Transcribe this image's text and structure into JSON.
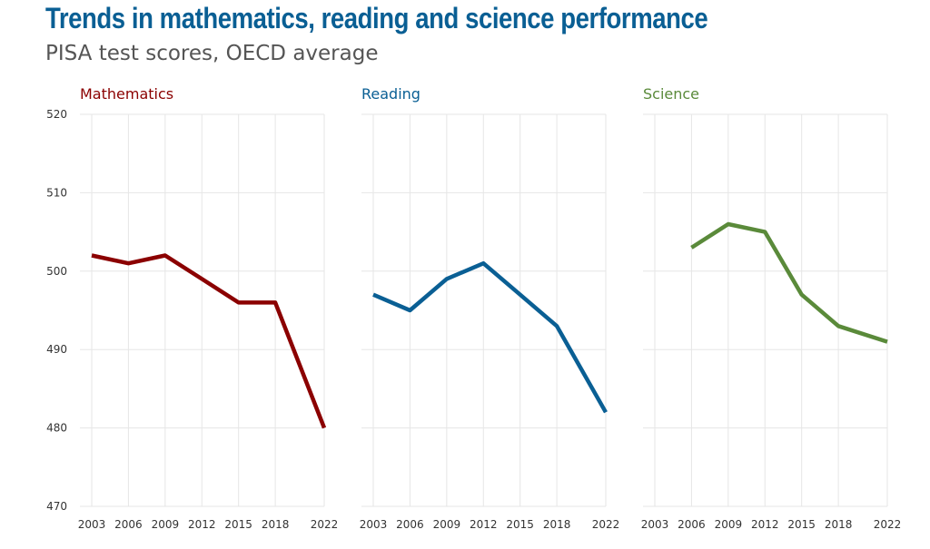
{
  "header": {
    "title": "Trends in mathematics, reading and science performance",
    "subtitle": "PISA test scores, OECD average"
  },
  "chart_data": {
    "type": "line",
    "x": [
      "2003",
      "2006",
      "2009",
      "2012",
      "2015",
      "2018",
      "2022"
    ],
    "ylim": [
      470,
      520
    ],
    "yticks": [
      470,
      480,
      490,
      500,
      510,
      520
    ],
    "grid": true,
    "panels": [
      {
        "name": "Mathematics",
        "color": "#8b0000",
        "values": [
          502,
          501,
          502,
          499,
          496,
          496,
          480
        ]
      },
      {
        "name": "Reading",
        "color": "#0a5f94",
        "values": [
          497,
          495,
          499,
          501,
          497,
          493,
          482
        ]
      },
      {
        "name": "Science",
        "color": "#5a8a3a",
        "values": [
          null,
          503,
          506,
          505,
          497,
          493,
          491
        ]
      }
    ]
  }
}
